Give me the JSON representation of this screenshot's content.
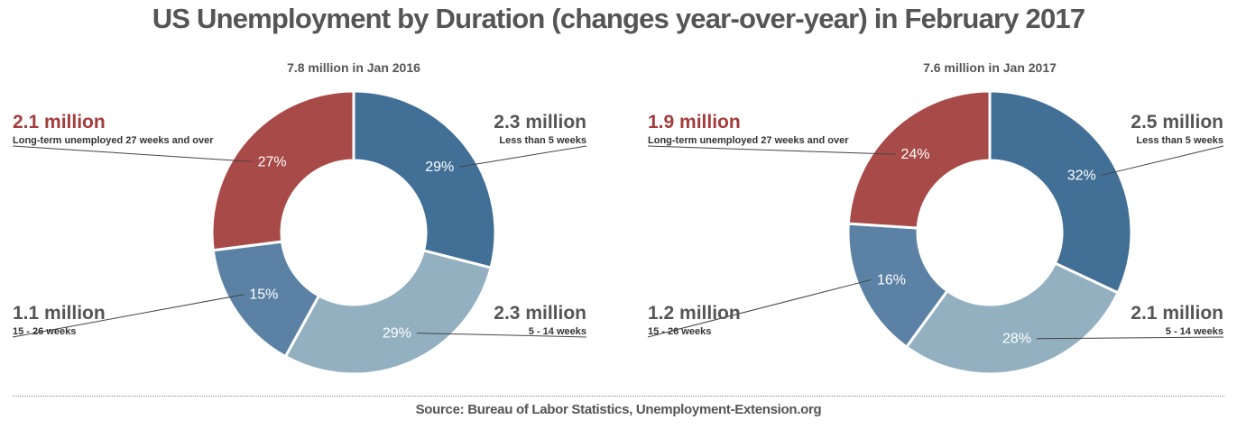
{
  "title": "US Unemployment by Duration (changes year-over-year) in February 2017",
  "source": "Source: Bureau of Labor Statistics, Unemployment-Extension.org",
  "colors": {
    "less_than_5": "#426f96",
    "w5_14": "#93b0c1",
    "w15_26": "#5b82a5",
    "long_term": "#a84a47",
    "text": "#555555",
    "highlight": "#a33c3c"
  },
  "chart_data": [
    {
      "type": "pie",
      "donut": true,
      "title": "7.8 million in Jan 2016",
      "slices": [
        {
          "label": "Less than 5 weeks",
          "value_label": "2.3 million",
          "value": 2.3,
          "percent": 29,
          "color": "#426f96"
        },
        {
          "label": "5 - 14 weeks",
          "value_label": "2.3 million",
          "value": 2.3,
          "percent": 29,
          "color": "#93b0c1"
        },
        {
          "label": "15 - 26 weeks",
          "value_label": "1.1 million",
          "value": 1.1,
          "percent": 15,
          "color": "#5b82a5"
        },
        {
          "label": "Long-term unemployed 27 weeks and over",
          "value_label": "2.1 million",
          "value": 2.1,
          "percent": 27,
          "color": "#a84a47"
        }
      ]
    },
    {
      "type": "pie",
      "donut": true,
      "title": "7.6 million in Jan 2017",
      "slices": [
        {
          "label": "Less than 5 weeks",
          "value_label": "2.5 million",
          "value": 2.5,
          "percent": 32,
          "color": "#426f96"
        },
        {
          "label": "5 - 14 weeks",
          "value_label": "2.1 million",
          "value": 2.1,
          "percent": 28,
          "color": "#93b0c1"
        },
        {
          "label": "15 - 26 weeks",
          "value_label": "1.2 million",
          "value": 1.2,
          "percent": 16,
          "color": "#5b82a5"
        },
        {
          "label": "Long-term unemployed 27 weeks and over",
          "value_label": "1.9 million",
          "value": 1.9,
          "percent": 24,
          "color": "#a84a47"
        }
      ]
    }
  ]
}
